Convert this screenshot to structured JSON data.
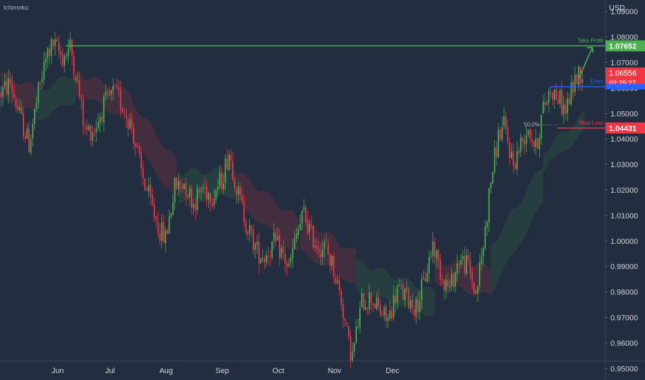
{
  "indicator_label": "Ichimoku",
  "currency_label": "USD",
  "chart_data": {
    "type": "candlestick",
    "y_axis": {
      "ticks": [
        "1.09000",
        "1.08000",
        "1.07000",
        "1.06000",
        "1.05000",
        "1.04000",
        "1.03000",
        "1.02000",
        "1.01000",
        "1.00000",
        "0.99000",
        "0.98000",
        "0.97000",
        "0.96000",
        "0.95000"
      ],
      "range": [
        0.9455,
        1.0945
      ]
    },
    "x_axis": {
      "months": [
        "Jun",
        "Jul",
        "Aug",
        "Sep",
        "Oct",
        "Nov",
        "Dec"
      ]
    },
    "levels": {
      "take_profit": {
        "label": "Take Profit",
        "price": 1.07652,
        "price_label": "1.07652",
        "color": "#4caf50"
      },
      "entry": {
        "label": "Entry",
        "price": 1.0605,
        "color": "#2962ff"
      },
      "stop_loss": {
        "label": "Stop Loss",
        "price": 1.04431,
        "price_label": "1.04431",
        "color": "#f23645"
      },
      "fib": {
        "label": "50.0%",
        "price": 1.0455
      }
    },
    "current": {
      "price_label": "1.06556",
      "countdown": "02:25:27",
      "color": "#f23645"
    },
    "trend_path": [
      [
        0,
        1.058
      ],
      [
        5,
        1.062
      ],
      [
        10,
        1.049
      ],
      [
        15,
        1.038
      ],
      [
        20,
        1.058
      ],
      [
        25,
        1.074
      ],
      [
        28,
        1.077
      ],
      [
        33,
        1.072
      ],
      [
        37,
        1.076
      ],
      [
        40,
        1.066
      ],
      [
        45,
        1.043
      ],
      [
        50,
        1.044
      ],
      [
        55,
        1.053
      ],
      [
        60,
        1.058
      ],
      [
        63,
        1.056
      ],
      [
        70,
        1.045
      ],
      [
        75,
        1.027
      ],
      [
        80,
        1.015
      ],
      [
        85,
        1.004
      ],
      [
        88,
        1.001
      ],
      [
        93,
        1.021
      ],
      [
        98,
        1.023
      ],
      [
        103,
        1.015
      ],
      [
        108,
        1.021
      ],
      [
        113,
        1.018
      ],
      [
        118,
        1.024
      ],
      [
        122,
        1.035
      ],
      [
        127,
        1.018
      ],
      [
        132,
        1.005
      ],
      [
        137,
        0.996
      ],
      [
        141,
        0.994
      ],
      [
        146,
        0.999
      ],
      [
        150,
        0.996
      ],
      [
        154,
        0.989
      ],
      [
        158,
        1.002
      ],
      [
        162,
        1.011
      ],
      [
        166,
        1.002
      ],
      [
        170,
        0.998
      ],
      [
        174,
        0.997
      ],
      [
        178,
        0.989
      ],
      [
        182,
        0.977
      ],
      [
        186,
        0.959
      ],
      [
        188,
        0.955
      ],
      [
        193,
        0.976
      ],
      [
        198,
        0.978
      ],
      [
        203,
        0.972
      ],
      [
        207,
        0.969
      ],
      [
        212,
        0.981
      ],
      [
        217,
        0.978
      ],
      [
        222,
        0.974
      ],
      [
        226,
        0.983
      ],
      [
        231,
        0.999
      ],
      [
        236,
        0.986
      ],
      [
        240,
        0.981
      ],
      [
        245,
        0.993
      ],
      [
        250,
        0.99
      ],
      [
        254,
        0.979
      ],
      [
        258,
        0.998
      ],
      [
        262,
        1.024
      ],
      [
        266,
        1.041
      ],
      [
        269,
        1.045
      ],
      [
        274,
        1.03
      ],
      [
        278,
        1.038
      ],
      [
        282,
        1.045
      ],
      [
        286,
        1.036
      ],
      [
        290,
        1.052
      ],
      [
        294,
        1.06
      ],
      [
        298,
        1.056
      ],
      [
        302,
        1.051
      ],
      [
        306,
        1.061
      ],
      [
        309,
        1.066
      ]
    ],
    "cloud_segments": [
      {
        "from": 0,
        "to": 18,
        "top": [
          1.066,
          1.06
        ],
        "bottom": [
          1.056,
          1.05
        ],
        "color": "red"
      },
      {
        "from": 18,
        "to": 40,
        "top": [
          1.058,
          1.066
        ],
        "bottom": [
          1.047,
          1.055
        ],
        "color": "green"
      },
      {
        "from": 40,
        "to": 70,
        "top": [
          1.066,
          1.058
        ],
        "bottom": [
          1.058,
          1.047
        ],
        "color": "red"
      },
      {
        "from": 70,
        "to": 95,
        "top": [
          1.055,
          1.03
        ],
        "bottom": [
          1.04,
          1.015
        ],
        "color": "red"
      },
      {
        "from": 95,
        "to": 125,
        "top": [
          1.027,
          1.028
        ],
        "bottom": [
          1.015,
          1.018
        ],
        "color": "green"
      },
      {
        "from": 125,
        "to": 160,
        "top": [
          1.028,
          1.008
        ],
        "bottom": [
          1.016,
          0.994
        ],
        "color": "red"
      },
      {
        "from": 160,
        "to": 190,
        "top": [
          1.01,
          0.995
        ],
        "bottom": [
          0.996,
          0.983
        ],
        "color": "red"
      },
      {
        "from": 190,
        "to": 232,
        "top": [
          0.992,
          0.98
        ],
        "bottom": [
          0.98,
          0.971
        ],
        "color": "green"
      },
      {
        "from": 232,
        "to": 262,
        "top": [
          0.992,
          0.99
        ],
        "bottom": [
          0.984,
          0.978
        ],
        "color": "red"
      },
      {
        "from": 262,
        "to": 290,
        "top": [
          0.998,
          1.03
        ],
        "bottom": [
          0.98,
          1.015
        ],
        "color": "green"
      },
      {
        "from": 290,
        "to": 312,
        "top": [
          1.035,
          1.05
        ],
        "bottom": [
          1.028,
          1.043
        ],
        "color": "green"
      }
    ]
  }
}
